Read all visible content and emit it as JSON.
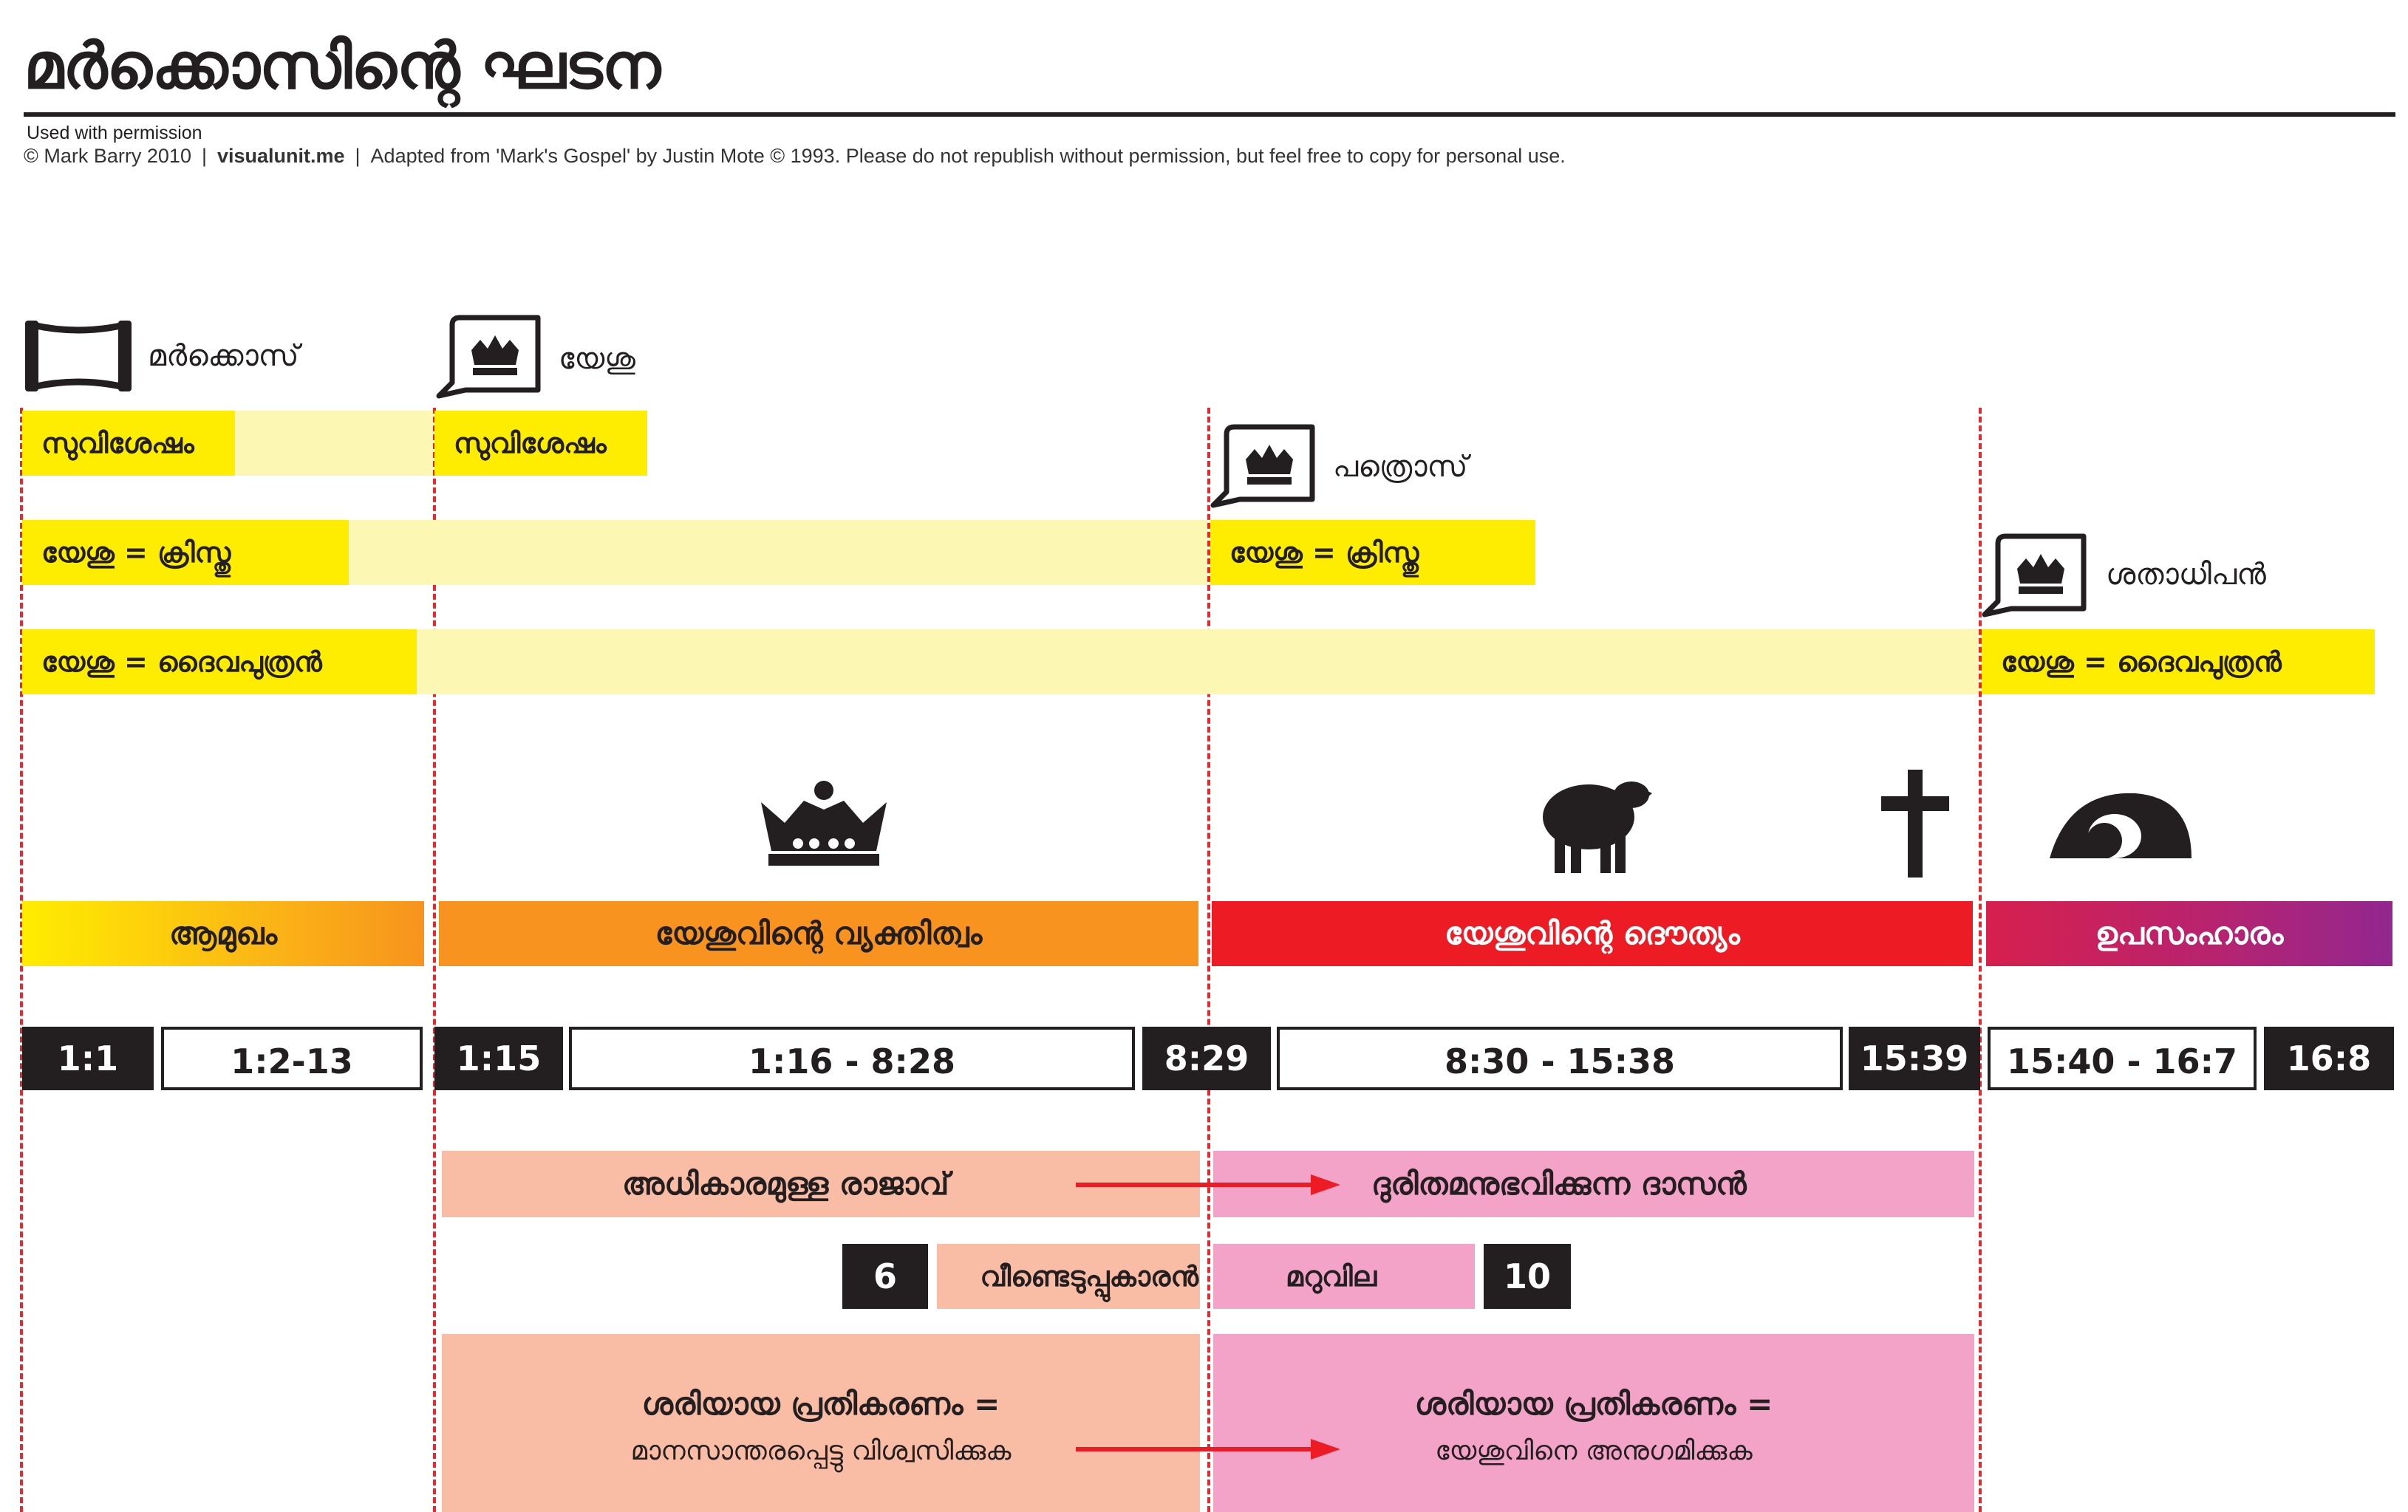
{
  "header": {
    "title": "മർക്കൊസിന്റെ ഘടന",
    "permission": "Used with permission",
    "copyright": "© Mark Barry 2010",
    "site": "visualunit.me",
    "credit": "Adapted from 'Mark's Gospel' by Justin Mote © 1993. Please do not republish without permission, but feel free to copy for personal use."
  },
  "speakers": [
    {
      "label": "മർക്കൊസ്",
      "icon": "scroll-icon"
    },
    {
      "label": "യേശു",
      "icon": "speech-crown-icon"
    },
    {
      "label": "പത്രൊസ്",
      "icon": "speech-crown-icon"
    },
    {
      "label": "ശതാധിപൻ",
      "icon": "speech-crown-icon"
    }
  ],
  "statements": {
    "gospel": "സുവിശേഷം",
    "christ": "യേശു = ക്രിസ്തു",
    "son_of_god": "യേശു = ദൈവപുത്രൻ"
  },
  "symbols": [
    "crown-icon",
    "lamb-icon",
    "cross-icon",
    "empty-tomb-icon"
  ],
  "sections": [
    {
      "label": "ആമുഖം"
    },
    {
      "label": "യേശുവിന്റെ വ്യക്തിത്വം"
    },
    {
      "label": "യേശുവിന്റെ ദൌത്യം"
    },
    {
      "label": "ഉപസംഹാരം"
    }
  ],
  "references": [
    "1:1",
    "1:2-13",
    "1:15",
    "1:16 - 8:28",
    "8:29",
    "8:30 - 15:38",
    "15:39",
    "15:40 - 16:7",
    "16:8"
  ],
  "themes": {
    "king": "അധികാരമുള്ള രാജാവ്",
    "servant": "ദുരിതമനുഭവിക്കുന്ന ദാസൻ",
    "chapter_6": "6",
    "ransom_left": "വീണ്ടെടുപ്പുകാരൻ",
    "ransom_right": "മറുവില",
    "chapter_10": "10",
    "response_title": "ശരിയായ പ്രതികരണം =",
    "response_left": "മാനസാന്തരപ്പെട്ടു വിശ്വസിക്കുക",
    "response_right": "യേശുവിനെ അനുഗമിക്കുക"
  },
  "colors": {
    "yellow": "#ffed00",
    "pale_yellow": "#fdf7b4",
    "orange": "#f7931e",
    "red": "#ed1c24",
    "purple": "#92278f",
    "salmon": "#f9bca4",
    "pink": "#f4a3c8",
    "dark": "#231f20",
    "dash_red": "#e8272e"
  }
}
